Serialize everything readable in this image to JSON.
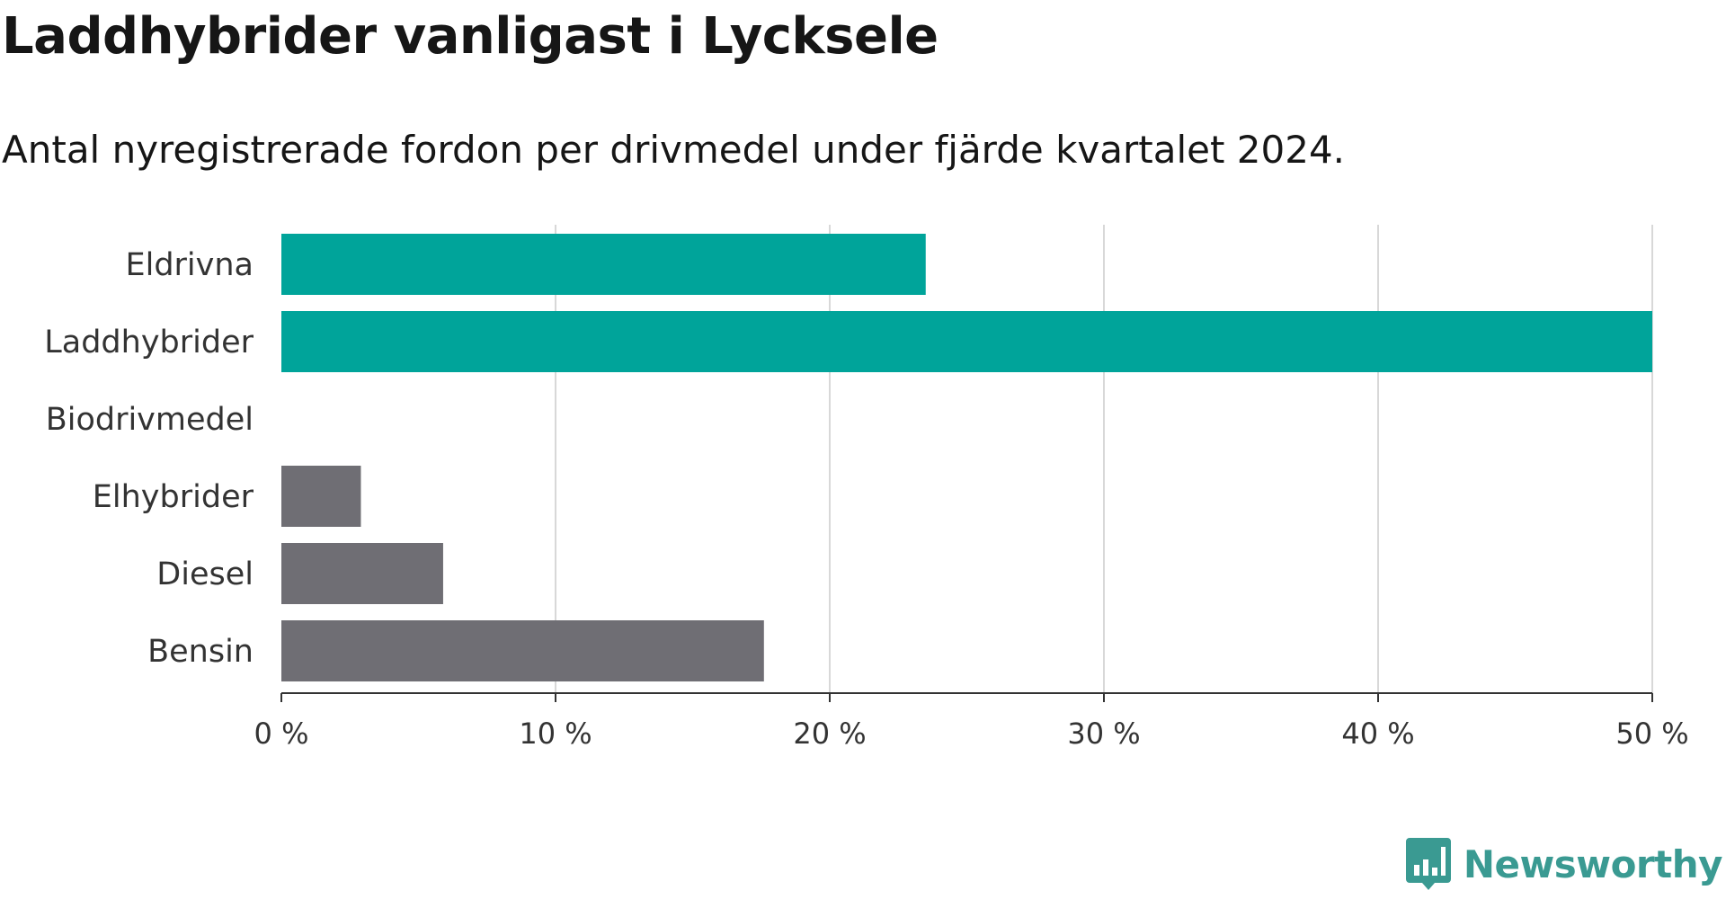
{
  "title": "Laddhybrider vanligast i Lycksele",
  "subtitle": "Antal nyregistrerade fordon per drivmedel under fjärde kvartalet 2024.",
  "brand": {
    "name": "Newsworthy",
    "color": "#3a9a92",
    "icon": "bar-chart-speech-bubble-icon"
  },
  "chart_data": {
    "type": "bar",
    "orientation": "horizontal",
    "title": "Laddhybrider vanligast i Lycksele",
    "subtitle": "Antal nyregistrerade fordon per drivmedel under fjärde kvartalet 2024.",
    "categories": [
      "Eldrivna",
      "Laddhybrider",
      "Biodrivmedel",
      "Elhybrider",
      "Diesel",
      "Bensin"
    ],
    "values": [
      23.5,
      50.0,
      0.0,
      2.9,
      5.9,
      17.6
    ],
    "colors": [
      "#00a49a",
      "#00a49a",
      "#00a49a",
      "#6f6e74",
      "#6f6e74",
      "#6f6e74"
    ],
    "xlim": [
      0,
      50
    ],
    "x_ticks": [
      0,
      10,
      20,
      30,
      40,
      50
    ],
    "x_tick_labels": [
      "0 %",
      "10 %",
      "20 %",
      "30 %",
      "40 %",
      "50 %"
    ],
    "xlabel": "",
    "ylabel": "",
    "grid": "vertical",
    "legend": "none"
  }
}
